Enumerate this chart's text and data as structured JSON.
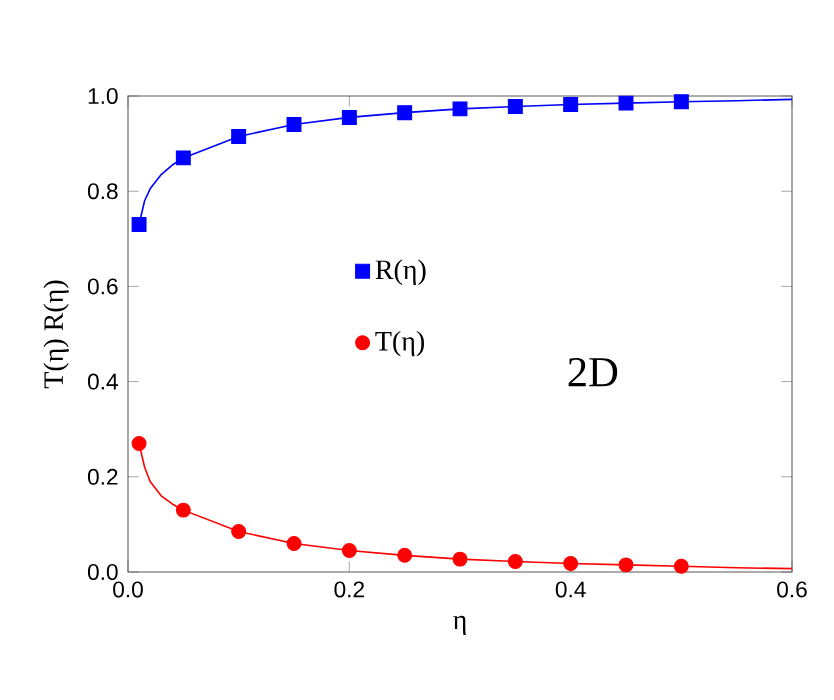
{
  "chart_data": {
    "type": "scatter",
    "xlabel": "η",
    "ylabel": "T(η)      R(η)",
    "xlim": [
      0,
      0.6
    ],
    "ylim": [
      0,
      1.0
    ],
    "xticks": [
      {
        "value": 0,
        "label": "0.0"
      },
      0.2,
      0.4,
      0.6
    ],
    "yticks": [
      {
        "value": 0,
        "label": "0.0"
      },
      0.2,
      0.4,
      0.6,
      0.8,
      {
        "value": 1,
        "label": "1.0"
      }
    ],
    "legend": "center",
    "grid": false,
    "annotations": [
      "2D"
    ],
    "series": [
      {
        "name": "R(η)",
        "marker": "square",
        "color": "#0000ff",
        "x": [
          0.01,
          0.05,
          0.1,
          0.15,
          0.2,
          0.25,
          0.3,
          0.35,
          0.4,
          0.45,
          0.5
        ],
        "values": [
          0.73,
          0.87,
          0.915,
          0.94,
          0.955,
          0.965,
          0.973,
          0.978,
          0.982,
          0.985,
          0.988
        ]
      },
      {
        "name": "T(η)",
        "marker": "circle",
        "color": "#ff0000",
        "x": [
          0.01,
          0.05,
          0.1,
          0.15,
          0.2,
          0.25,
          0.3,
          0.35,
          0.4,
          0.45,
          0.5
        ],
        "values": [
          0.27,
          0.13,
          0.085,
          0.06,
          0.045,
          0.035,
          0.027,
          0.022,
          0.018,
          0.015,
          0.012
        ]
      },
      {
        "type": "line",
        "marker": "none",
        "color": "#0000ff",
        "x": [
          0.01,
          0.015,
          0.02,
          0.03,
          0.04,
          0.05,
          0.1,
          0.15,
          0.2,
          0.25,
          0.3,
          0.35,
          0.4,
          0.45,
          0.5,
          0.55,
          0.6
        ],
        "values": [
          0.73,
          0.78,
          0.805,
          0.835,
          0.855,
          0.87,
          0.915,
          0.94,
          0.955,
          0.965,
          0.973,
          0.978,
          0.982,
          0.985,
          0.988,
          0.99,
          0.993
        ]
      },
      {
        "type": "line",
        "marker": "none",
        "color": "#ff0000",
        "x": [
          0.01,
          0.015,
          0.02,
          0.03,
          0.04,
          0.05,
          0.1,
          0.15,
          0.2,
          0.25,
          0.3,
          0.35,
          0.4,
          0.45,
          0.5,
          0.55,
          0.6
        ],
        "values": [
          0.27,
          0.22,
          0.19,
          0.16,
          0.143,
          0.13,
          0.085,
          0.06,
          0.045,
          0.035,
          0.027,
          0.022,
          0.018,
          0.015,
          0.012,
          0.009,
          0.007
        ]
      }
    ]
  }
}
